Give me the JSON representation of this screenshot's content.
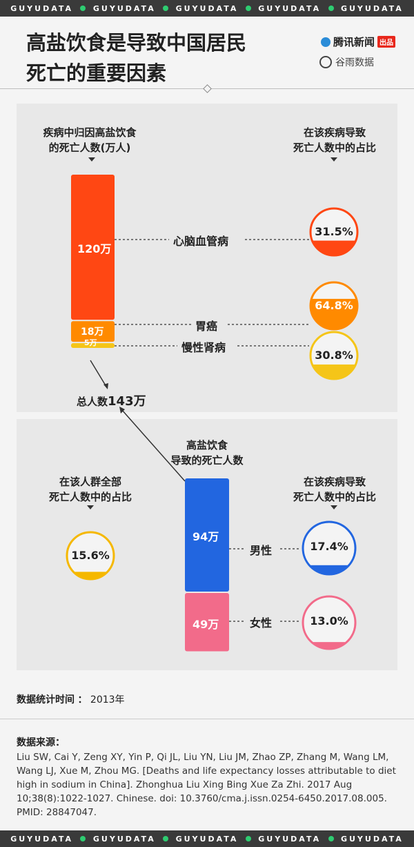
{
  "strip_text": "GUYUDATA",
  "title_line1": "高盐饮食是导致中国居民",
  "title_line2": "死亡的重要因素",
  "brand": {
    "tencent": "腾讯新闻",
    "tencent_tag": "出品",
    "guyu": "谷雨数据"
  },
  "colors": {
    "red": "#ff4713",
    "orange": "#ff8a00",
    "yellow": "#f5c518",
    "blue": "#2266e0",
    "pink": "#f26b8a"
  },
  "chart_data": [
    {
      "type": "bar",
      "title": "",
      "left_header": "疾病中归因高盐饮食\n的死亡人数(万人)",
      "right_header": "在该疾病导致\n死亡人数中的占比",
      "total_label": "总人数",
      "total_value": "143万",
      "categories": [
        "心脑血管病",
        "胃癌",
        "慢性肾病"
      ],
      "values": [
        120,
        18,
        5
      ],
      "value_labels": [
        "120万",
        "18万",
        "5万"
      ],
      "shares": [
        31.5,
        64.8,
        30.8
      ],
      "share_labels": [
        "31.5%",
        "64.8%",
        "30.8%"
      ]
    },
    {
      "type": "bar",
      "title": "",
      "center_header": "高盐饮食\n导致的死亡人数",
      "left_header": "在该人群全部\n死亡人数中的占比",
      "right_header": "在该疾病导致\n死亡人数中的占比",
      "overall_share": 15.6,
      "overall_share_label": "15.6%",
      "categories": [
        "男性",
        "女性"
      ],
      "values": [
        94,
        49
      ],
      "value_labels": [
        "94万",
        "49万"
      ],
      "shares": [
        17.4,
        13.0
      ],
      "share_labels": [
        "17.4%",
        "13.0%"
      ]
    }
  ],
  "year_label": "数据统计时间",
  "year_sep": "：",
  "year_value": "2013年",
  "source_label": "数据来源：",
  "source_text": "Liu SW, Cai Y, Zeng XY, Yin P, Qi JL, Liu YN, Liu JM, Zhao ZP, Zhang M, Wang LM, Wang LJ, Xue M, Zhou MG. [Deaths and life expectancy losses attributable to diet high in sodium in China]. Zhonghua Liu Xing Bing Xue Za Zhi. 2017 Aug 10;38(8):1022-1027. Chinese. doi: 10.3760/cma.j.issn.0254-6450.2017.08.005. PMID: 28847047."
}
